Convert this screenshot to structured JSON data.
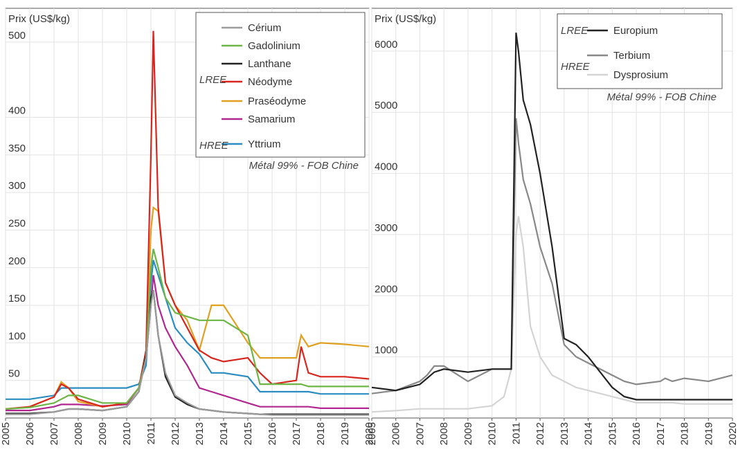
{
  "chart_data": [
    {
      "type": "line",
      "ylabel": "Prix (US$/kg)",
      "annotation": "Métal 99% - FOB Chine",
      "legend_groups": [
        "LREE",
        "HREE"
      ],
      "x": [
        2005,
        2006,
        2007,
        2007.3,
        2007.6,
        2008,
        2009,
        2010,
        2010.5,
        2010.8,
        2011,
        2011.1,
        2011.3,
        2011.6,
        2012,
        2012.5,
        2013,
        2013.5,
        2014,
        2015,
        2015.5,
        2016,
        2017,
        2017.2,
        2017.5,
        2018,
        2019,
        2020
      ],
      "xlim": [
        2005,
        2020
      ],
      "xticks": [
        2005,
        2006,
        2007,
        2008,
        2009,
        2010,
        2011,
        2012,
        2013,
        2014,
        2015,
        2016,
        2017,
        2018,
        2019,
        2020
      ],
      "ylim": [
        0,
        545
      ],
      "yticks": [
        50,
        100,
        150,
        200,
        250,
        300,
        350,
        400,
        500
      ],
      "grid": true,
      "series": [
        {
          "name": "Cérium",
          "color": "#9a9a9a",
          "values": [
            5,
            5,
            8,
            10,
            12,
            12,
            10,
            15,
            35,
            80,
            150,
            170,
            110,
            60,
            30,
            20,
            12,
            10,
            8,
            6,
            5,
            4,
            4,
            4,
            4,
            4,
            4,
            4
          ]
        },
        {
          "name": "Gadolinium",
          "color": "#6db545",
          "values": [
            12,
            14,
            20,
            25,
            30,
            30,
            20,
            20,
            40,
            80,
            200,
            225,
            200,
            160,
            140,
            135,
            130,
            130,
            130,
            110,
            45,
            45,
            45,
            45,
            42,
            42,
            42,
            42
          ]
        },
        {
          "name": "Lanthane",
          "color": "#222222",
          "values": [
            6,
            6,
            8,
            10,
            12,
            12,
            10,
            15,
            35,
            85,
            160,
            170,
            110,
            55,
            28,
            18,
            12,
            10,
            8,
            6,
            5,
            5,
            5,
            5,
            5,
            5,
            5,
            5
          ]
        },
        {
          "name": "Néodyme",
          "color": "#d7261e",
          "values": [
            12,
            15,
            28,
            45,
            40,
            25,
            15,
            20,
            40,
            90,
            350,
            515,
            280,
            180,
            150,
            120,
            90,
            80,
            75,
            80,
            60,
            45,
            50,
            95,
            60,
            55,
            55,
            52
          ]
        },
        {
          "name": "Praséodyme",
          "color": "#e0a020",
          "values": [
            12,
            15,
            28,
            48,
            40,
            22,
            15,
            20,
            40,
            90,
            250,
            280,
            275,
            180,
            150,
            130,
            90,
            150,
            150,
            100,
            80,
            80,
            80,
            110,
            95,
            100,
            98,
            95
          ]
        },
        {
          "name": "Samarium",
          "color": "#b0288f",
          "values": [
            10,
            10,
            15,
            18,
            18,
            18,
            16,
            18,
            40,
            80,
            150,
            190,
            150,
            120,
            95,
            70,
            40,
            35,
            30,
            20,
            15,
            15,
            15,
            15,
            15,
            13,
            13,
            13
          ]
        },
        {
          "name": "Yttrium",
          "color": "#2a8cc0",
          "values": [
            25,
            25,
            30,
            40,
            40,
            40,
            40,
            40,
            45,
            70,
            180,
            210,
            190,
            160,
            120,
            100,
            85,
            60,
            60,
            55,
            35,
            35,
            35,
            35,
            35,
            32,
            32,
            32
          ]
        }
      ]
    },
    {
      "type": "line",
      "ylabel": "Prix (US$/kg)",
      "annotation": "Métal 99% - FOB Chine",
      "legend_groups": [
        "LREE",
        "HREE"
      ],
      "x": [
        2005,
        2006,
        2007,
        2007.3,
        2007.6,
        2008,
        2009,
        2010,
        2010.5,
        2010.8,
        2011,
        2011.1,
        2011.3,
        2011.6,
        2012,
        2012.5,
        2013,
        2013.5,
        2014,
        2015,
        2015.5,
        2016,
        2017,
        2017.2,
        2017.5,
        2018,
        2019,
        2020
      ],
      "xlim": [
        2005,
        2020
      ],
      "xticks": [
        2005,
        2006,
        2007,
        2008,
        2009,
        2010,
        2011,
        2012,
        2013,
        2014,
        2015,
        2016,
        2017,
        2018,
        2019,
        2020
      ],
      "ylim": [
        0,
        6700
      ],
      "yticks": [
        1000,
        2000,
        3000,
        4000,
        5000,
        6000
      ],
      "grid": true,
      "series": [
        {
          "name": "Europium",
          "color": "#222222",
          "values": [
            500,
            450,
            550,
            650,
            750,
            800,
            750,
            800,
            800,
            800,
            6300,
            6000,
            5200,
            4800,
            4000,
            2800,
            1300,
            1200,
            1000,
            500,
            350,
            300,
            300,
            300,
            300,
            300,
            300,
            300
          ]
        },
        {
          "name": "Terbium",
          "color": "#888888",
          "values": [
            400,
            450,
            600,
            700,
            850,
            850,
            600,
            800,
            800,
            800,
            4900,
            4500,
            3900,
            3500,
            2800,
            2200,
            1200,
            1000,
            900,
            700,
            600,
            550,
            600,
            650,
            600,
            650,
            600,
            700
          ]
        },
        {
          "name": "Dysprosium",
          "color": "#d4d4d4",
          "values": [
            100,
            120,
            150,
            150,
            150,
            150,
            150,
            200,
            350,
            800,
            3000,
            3300,
            2800,
            1500,
            1000,
            700,
            600,
            500,
            450,
            350,
            300,
            250,
            250,
            250,
            250,
            230,
            230,
            230
          ]
        }
      ]
    }
  ]
}
